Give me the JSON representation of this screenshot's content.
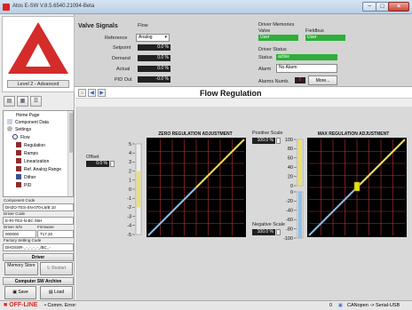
{
  "window": {
    "title": "Atos E-SW V.8.5.6540.21094-Beta",
    "minimize_glyph": "−",
    "maximize_glyph": "□",
    "close_glyph": "×"
  },
  "left": {
    "level_button": "Level 2 - Advanced",
    "tree": [
      "Home Page",
      "Component Data",
      "Settings",
      "Flow",
      "Regulation",
      "Ramps",
      "Linearization",
      "Ref. Analog Range",
      "Dither",
      "PID"
    ],
    "component_code_label": "Component Code",
    "component_code": "DHZO-TES-SN-070-L5/B 10",
    "driver_code_label": "Driver Code",
    "driver_code": "E-RI-TES-N-BC 05H",
    "driver_sn_label": "Driver S/N",
    "firmware_label": "Firmware",
    "driver_sn": "000000",
    "firmware": "T17.20",
    "factory_code_label": "Factory Setting Code",
    "factory_code": "DHOSSR-_-_-_-_-_/BC_-",
    "driver_section": "Driver",
    "memory_store": "Memory Store",
    "restart": "Restart",
    "archive_section": "Computer SW Archive",
    "save": "Save",
    "load": "Load"
  },
  "header": {
    "valve_signals": "Valve Signals",
    "flow_label": "Flow",
    "reference_label": "Reference",
    "reference_value": "Analog",
    "setpoint_label": "Setpoint",
    "setpoint_value": "0.0 %",
    "demand_label": "Demand",
    "demand_value": "0.0 %",
    "actual_label": "Actual",
    "actual_value": "0.0 %",
    "pid_out_label": "PID Out",
    "pid_out_value": "-0.0 %",
    "driver_memories": "Driver Memories",
    "valve_label": "Valve",
    "fieldbus_label": "Fieldbus",
    "valve_mem": "User",
    "fieldbus_mem": "User",
    "driver_status": "Driver Status",
    "status_label": "Status",
    "status_value": "active",
    "alarm_label": "Alarm",
    "alarm_value": "No Alarm",
    "alarms_numb_label": "Alarms Numb.",
    "alarms_numb": "0",
    "more_button": "More..."
  },
  "page": {
    "title": "Flow Regulation"
  },
  "offset": {
    "label": "Offset",
    "value": "0.0 %"
  },
  "positive_scale": {
    "label": "Positive Scale",
    "value": "100.0 %"
  },
  "negative_scale": {
    "label": "Negative Scale",
    "value": "100.0 %"
  },
  "chart_data": [
    {
      "type": "line",
      "title": "ZERO REGULATION ADJUSTMENT",
      "grid": true,
      "x": [
        -100,
        0,
        100
      ],
      "series": [
        {
          "values": [
            -100,
            0,
            100
          ],
          "color": "#8fc1e8",
          "segment": "negative"
        },
        {
          "values": [
            -100,
            0,
            100
          ],
          "color": "#f0e060",
          "segment": "positive"
        }
      ],
      "slider_ticks": [
        "5",
        "4",
        "3",
        "2",
        "1",
        "0",
        "-1",
        "-2",
        "-3",
        "-4",
        "-5"
      ],
      "slider_value": 0
    },
    {
      "type": "line",
      "title": "MAX REGULATION ADJUSTMENT",
      "grid": true,
      "x": [
        -100,
        0,
        100
      ],
      "series": [
        {
          "values": [
            -100,
            0,
            100
          ],
          "color": "#8fc1e8",
          "segment": "negative"
        },
        {
          "values": [
            -100,
            0,
            100
          ],
          "color": "#f0e060",
          "segment": "positive"
        }
      ],
      "positive_ticks": [
        "100",
        "80",
        "60",
        "40",
        "20",
        "0"
      ],
      "negative_ticks": [
        "0",
        "-20",
        "-40",
        "-60",
        "-80",
        "-100"
      ],
      "positive_value": 100,
      "negative_value": 100
    }
  ],
  "status": {
    "offline": "OFF-LINE",
    "comm": "• Comm. Error:",
    "count": "0",
    "connection": "CANopen -> Serial-USB"
  },
  "colors": {
    "accent_red": "#d42b2b",
    "status_green": "#2fae3a",
    "neg_line": "#8fc1e8",
    "pos_line": "#f0e060"
  }
}
